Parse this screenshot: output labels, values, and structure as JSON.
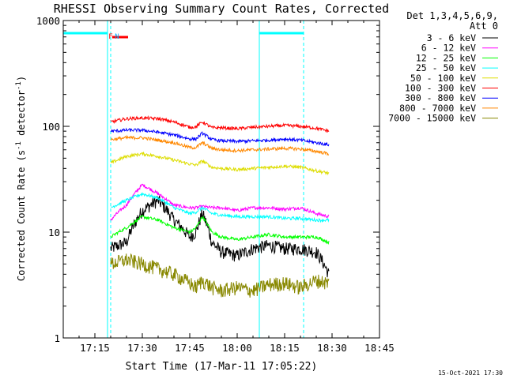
{
  "chart_data": {
    "type": "line",
    "title": "RHESSI Observing Summary Count Rates, Corrected",
    "xlabel": "Start Time (17-Mar-11 17:05:22)",
    "ylabel_main": "Corrected Count Rate (s",
    "ylabel_sup1": "-1",
    "ylabel_mid": " detector",
    "ylabel_sup2": "-1",
    "ylabel_end": ")",
    "yscale": "log",
    "ylim": [
      1,
      1000
    ],
    "xlim_minutes": [
      0,
      100
    ],
    "x_ticks": [
      {
        "label": "17:15",
        "minutes": 10
      },
      {
        "label": "17:30",
        "minutes": 25
      },
      {
        "label": "17:45",
        "minutes": 40
      },
      {
        "label": "18:00",
        "minutes": 55
      },
      {
        "label": "18:15",
        "minutes": 70
      },
      {
        "label": "18:30",
        "minutes": 85
      },
      {
        "label": "18:45",
        "minutes": 100
      }
    ],
    "y_ticks": [
      {
        "label": "1",
        "value": 1
      },
      {
        "label": "10",
        "value": 10
      },
      {
        "label": "100",
        "value": 100
      },
      {
        "label": "1000",
        "value": 1000
      }
    ],
    "legend_header": [
      "Det 1,3,4,5,6,9,",
      "Att 0"
    ],
    "data_start_minutes": 15,
    "data_end_minutes": 84,
    "time_grid_minutes": [
      15,
      20,
      25,
      30,
      35,
      40,
      42,
      44,
      47,
      50,
      55,
      60,
      65,
      70,
      75,
      80,
      84
    ],
    "series": [
      {
        "name": "3 - 6 keV",
        "color": "#000000",
        "values": [
          7,
          8,
          16,
          20,
          13,
          9,
          10,
          15,
          8,
          6.5,
          6,
          7,
          7.5,
          7,
          7,
          6.5,
          4
        ]
      },
      {
        "name": "6 - 12 keV",
        "color": "#ff00ff",
        "values": [
          13,
          18,
          28,
          23,
          18,
          17,
          17,
          17.5,
          17,
          17,
          16,
          17,
          17,
          16.5,
          17,
          15,
          14
        ]
      },
      {
        "name": "12 - 25 keV",
        "color": "#00ff00",
        "values": [
          9,
          11,
          14,
          13,
          11,
          10,
          11,
          14,
          10,
          9,
          8.5,
          9,
          9.5,
          9,
          9,
          9,
          8
        ]
      },
      {
        "name": "25 - 50 keV",
        "color": "#00ffff",
        "values": [
          17,
          20,
          23,
          21,
          17,
          15,
          15.5,
          17,
          15,
          14.5,
          14,
          14,
          14,
          13.5,
          13.5,
          13,
          13
        ]
      },
      {
        "name": "50 - 100 keV",
        "color": "#dddd00",
        "values": [
          45,
          52,
          55,
          52,
          48,
          44,
          43,
          47,
          41,
          40,
          39,
          40,
          41,
          42,
          41,
          38,
          36
        ]
      },
      {
        "name": "100 - 300 keV",
        "color": "#ff0000",
        "values": [
          110,
          118,
          120,
          118,
          110,
          98,
          99,
          110,
          97,
          97,
          95,
          98,
          100,
          102,
          100,
          96,
          90
        ]
      },
      {
        "name": "300 - 800 keV",
        "color": "#0000ff",
        "values": [
          90,
          92,
          92,
          88,
          83,
          76,
          76,
          86,
          75,
          73,
          72,
          73,
          74,
          76,
          74,
          70,
          67
        ]
      },
      {
        "name": "800 - 7000 keV",
        "color": "#ff8800",
        "values": [
          75,
          78,
          78,
          74,
          70,
          63,
          63,
          70,
          62,
          60,
          59,
          60,
          61,
          62,
          61,
          58,
          55
        ]
      },
      {
        "name": "7000 - 15000 keV",
        "color": "#888800",
        "values": [
          5,
          5.5,
          5,
          4.5,
          4,
          3.3,
          3,
          3.5,
          3,
          2.8,
          3,
          2.8,
          3.2,
          3.3,
          3,
          3.5,
          3.3
        ]
      }
    ],
    "orbit_markers": [
      {
        "from_minutes": 0,
        "to_minutes": 14,
        "color": "#00ffff"
      },
      {
        "from_minutes": 62,
        "to_minutes": 76,
        "color": "#00ffff"
      }
    ],
    "vertical_markers_solid": [
      14,
      62
    ],
    "vertical_markers_dashed": [
      15,
      76
    ],
    "flag_labels": [
      {
        "text": "F",
        "color": "#ff0000",
        "minutes": 14.3
      },
      {
        "text": "N",
        "color": "#00aaff",
        "minutes": 16.3
      }
    ],
    "flare_bar": {
      "from_minutes": 15.5,
      "to_minutes": 20.5,
      "color": "#ff0000"
    }
  },
  "footer": {
    "timestamp": "15-Oct-2021 17:30"
  }
}
